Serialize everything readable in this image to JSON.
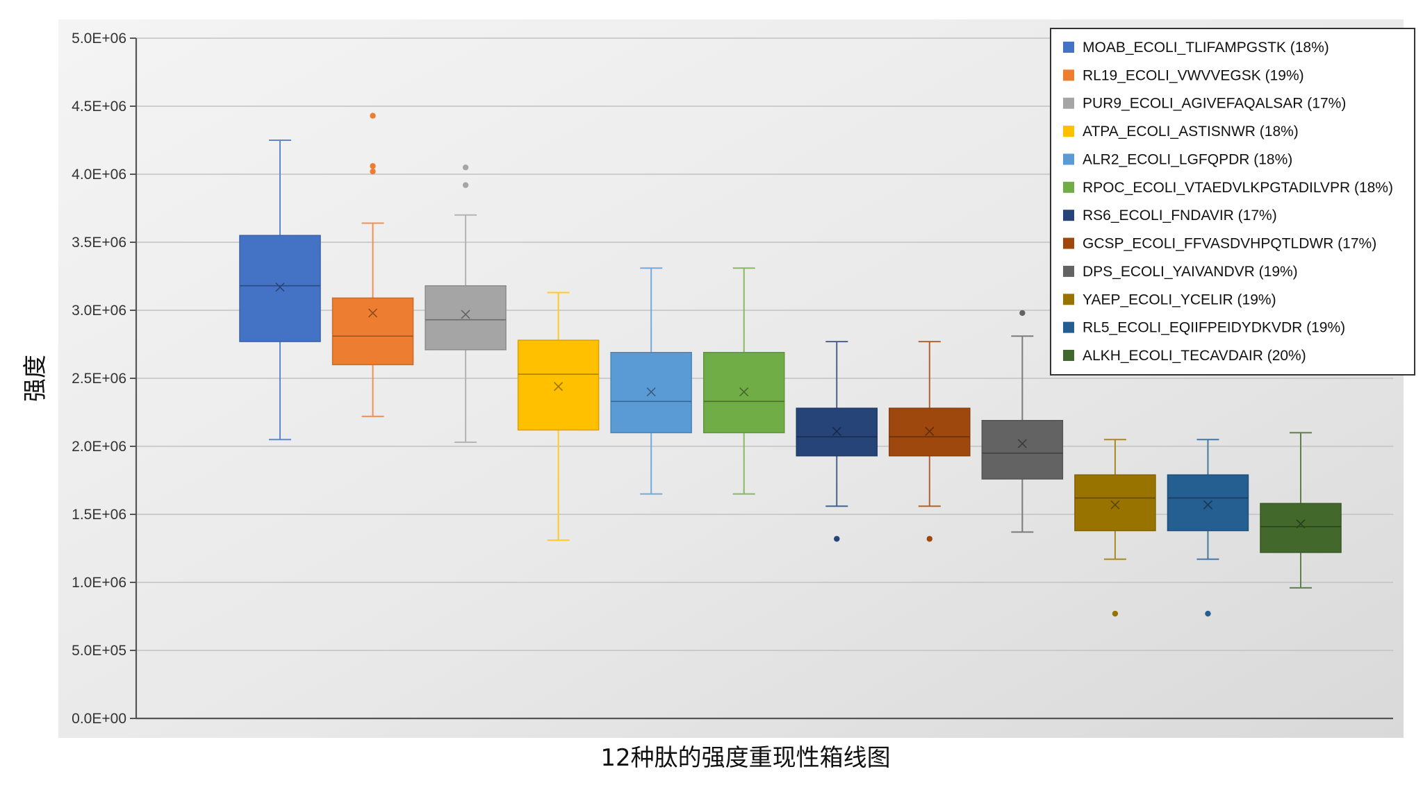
{
  "chart_data": {
    "type": "box",
    "xlabel": "12种肽的强度重现性箱线图",
    "ylabel": "强度",
    "ylim": [
      0,
      5000000
    ],
    "yticks": [
      0,
      500000,
      1000000,
      1500000,
      2000000,
      2500000,
      3000000,
      3500000,
      4000000,
      4500000,
      5000000
    ],
    "ytick_labels": [
      "0.0E+00",
      "5.0E+05",
      "1.0E+06",
      "1.5E+06",
      "2.0E+06",
      "2.5E+06",
      "3.0E+06",
      "3.5E+06",
      "4.0E+06",
      "4.5E+06",
      "5.0E+06"
    ],
    "grid": true,
    "legend_position": "top-right",
    "series": [
      {
        "name": "MOAB_ECOLI_TLIFAMPGSTK (18%)",
        "color": "#4472C4",
        "whisker_low": 2050000,
        "q1": 2770000,
        "median": 3180000,
        "q3": 3550000,
        "whisker_high": 4250000,
        "mean": 3170000,
        "outliers": []
      },
      {
        "name": "RL19_ECOLI_VWVVEGSK (19%)",
        "color": "#ED7D31",
        "whisker_low": 2220000,
        "q1": 2600000,
        "median": 2810000,
        "q3": 3090000,
        "whisker_high": 3640000,
        "mean": 2980000,
        "outliers": [
          4020000,
          4060000,
          4430000
        ]
      },
      {
        "name": "PUR9_ECOLI_AGIVEFAQALSAR (17%)",
        "color": "#A5A5A5",
        "whisker_low": 2030000,
        "q1": 2710000,
        "median": 2930000,
        "q3": 3180000,
        "whisker_high": 3700000,
        "mean": 2970000,
        "outliers": [
          3920000,
          4050000
        ]
      },
      {
        "name": "ATPA_ECOLI_ASTISNWR (18%)",
        "color": "#FFC000",
        "whisker_low": 1310000,
        "q1": 2120000,
        "median": 2530000,
        "q3": 2780000,
        "whisker_high": 3130000,
        "mean": 2440000,
        "outliers": []
      },
      {
        "name": "ALR2_ECOLI_LGFQPDR (18%)",
        "color": "#5B9BD5",
        "whisker_low": 1650000,
        "q1": 2100000,
        "median": 2330000,
        "q3": 2690000,
        "whisker_high": 3310000,
        "mean": 2400000,
        "outliers": []
      },
      {
        "name": "RPOC_ECOLI_VTAEDVLKPGTADILVPR (18%)",
        "color": "#70AD47",
        "whisker_low": 1650000,
        "q1": 2100000,
        "median": 2330000,
        "q3": 2690000,
        "whisker_high": 3310000,
        "mean": 2400000,
        "outliers": []
      },
      {
        "name": "RS6_ECOLI_FNDAVIR (17%)",
        "color": "#264478",
        "whisker_low": 1560000,
        "q1": 1930000,
        "median": 2070000,
        "q3": 2280000,
        "whisker_high": 2770000,
        "mean": 2110000,
        "outliers": [
          1320000
        ]
      },
      {
        "name": "GCSP_ECOLI_FFVASDVHPQTLDWR (17%)",
        "color": "#9E480E",
        "whisker_low": 1560000,
        "q1": 1930000,
        "median": 2070000,
        "q3": 2280000,
        "whisker_high": 2770000,
        "mean": 2110000,
        "outliers": [
          1320000
        ]
      },
      {
        "name": "DPS_ECOLI_YAIVANDVR (19%)",
        "color": "#636363",
        "whisker_low": 1370000,
        "q1": 1760000,
        "median": 1950000,
        "q3": 2190000,
        "whisker_high": 2810000,
        "mean": 2020000,
        "outliers": [
          2980000
        ]
      },
      {
        "name": "YAEP_ECOLI_YCELIR (19%)",
        "color": "#997300",
        "whisker_low": 1170000,
        "q1": 1380000,
        "median": 1620000,
        "q3": 1790000,
        "whisker_high": 2050000,
        "mean": 1570000,
        "outliers": [
          770000
        ]
      },
      {
        "name": "RL5_ECOLI_EQIIFPEIDYDKVDR (19%)",
        "color": "#255E91",
        "whisker_low": 1170000,
        "q1": 1380000,
        "median": 1620000,
        "q3": 1790000,
        "whisker_high": 2050000,
        "mean": 1570000,
        "outliers": [
          770000
        ]
      },
      {
        "name": "ALKH_ECOLI_TECAVDAIR (20%)",
        "color": "#43682B",
        "whisker_low": 960000,
        "q1": 1220000,
        "median": 1410000,
        "q3": 1580000,
        "whisker_high": 2100000,
        "mean": 1430000,
        "outliers": []
      }
    ]
  }
}
